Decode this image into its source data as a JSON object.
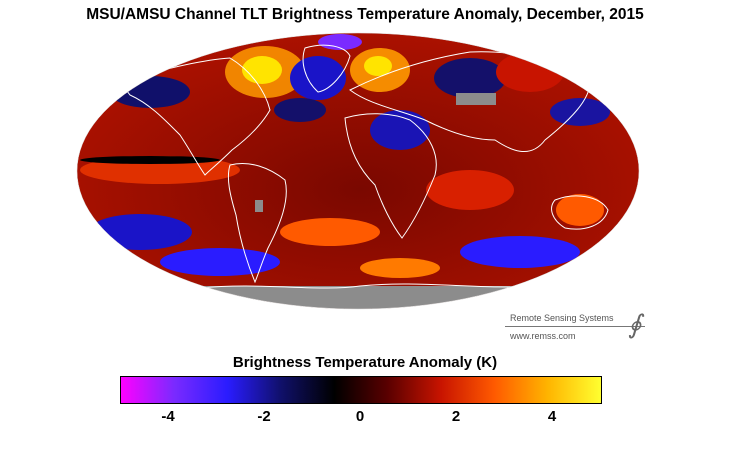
{
  "title": "MSU/AMSU Channel TLT Brightness Temperature Anomaly, December, 2015",
  "credit": {
    "org": "Remote Sensing Systems",
    "url": "www.remss.com"
  },
  "colorbar": {
    "title": "Brightness Temperature Anomaly (K)",
    "min": -5,
    "max": 5,
    "ticks": [
      {
        "value": -4,
        "label": "-4"
      },
      {
        "value": -2,
        "label": "-2"
      },
      {
        "value": 0,
        "label": "0"
      },
      {
        "value": 2,
        "label": "2"
      },
      {
        "value": 4,
        "label": "4"
      }
    ],
    "stops": [
      "#ff00ff",
      "#7a2aff",
      "#2a1cff",
      "#10106a",
      "#000000",
      "#5a0000",
      "#c81400",
      "#ff5a00",
      "#ffb400",
      "#ffff30"
    ]
  },
  "map": {
    "projection": "mollweide",
    "no_data_color": "#8c8c8c",
    "coast_color": "#ffffff"
  }
}
